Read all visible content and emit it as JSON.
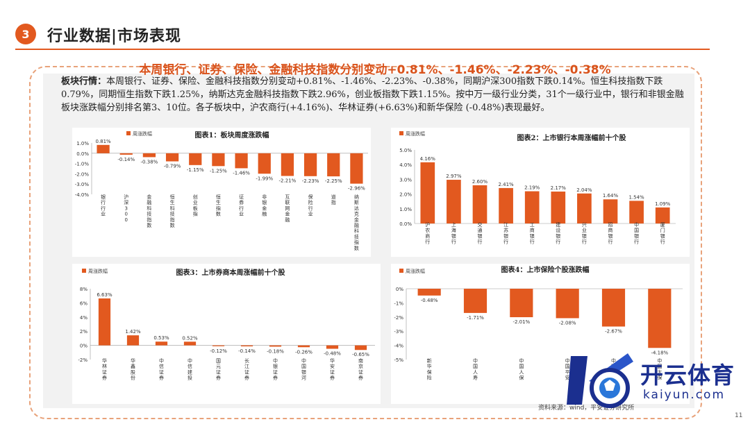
{
  "header": {
    "number": "3",
    "title": "行业数据|市场表现"
  },
  "headline": "本周银行、证券、保险、金融科技指数分别变动+0.81%、-1.46%、-2.23%、-0.38%",
  "summary": {
    "label": "板块行情：",
    "text": "本周银行、证券、保险、金融科技指数分别变动+0.81%、-1.46%、-2.23%、-0.38%，同期沪深300指数下跌0.14%。恒生科技指数下跌0.79%，同期恒生指数下跌1.25%，纳斯达克金融科技指数下跌2.96%，创业板指数下跌1.15%。按中万一级行业分类，31个一级行业中，银行和非银金融板块涨跌幅分别排名第3、10位。各子板块中，沪农商行(+4.16%)、华林证券(+6.63%)和新华保险 (-0.48%)表现最好。"
  },
  "source": "资料来源：wind，平安证券研究所",
  "page_number": "11",
  "watermark": {
    "cn": "开云体育",
    "en": "kaiyun.com"
  },
  "colors": {
    "accent": "#e2591f",
    "bar": "#e2591f"
  },
  "chart_data": [
    {
      "type": "bar",
      "title": "图表1：板块周度涨跌幅",
      "legend": "周涨跌幅",
      "categories": [
        "银行行业",
        "沪深300",
        "金融科技指数",
        "恒生科技指数",
        "创业板指",
        "恒生指数",
        "证券行业",
        "非银金融",
        "互联网金融",
        "保险行业",
        "道指",
        "纳斯达克金融科技指数"
      ],
      "values": [
        0.81,
        -0.14,
        -0.38,
        -0.79,
        -1.15,
        -1.25,
        -1.46,
        -1.99,
        -2.21,
        -2.23,
        -2.25,
        -2.96
      ],
      "data_labels": [
        "0.81%",
        "-0.14%",
        "-0.38%",
        "-0.79%",
        "-1.15%",
        "-1.25%",
        "-1.46%",
        "-1.99%",
        "-2.21%",
        "-2.23%",
        "-2.25%",
        "-2.96%"
      ],
      "y_ticks": [
        1,
        0,
        -1,
        -2,
        -3,
        -4
      ],
      "y_tick_labels": [
        "1.0%",
        "0.0%",
        "-1.0%",
        "-2.0%",
        "-3.0%",
        "-4.0%"
      ],
      "ylim": [
        -4,
        1
      ]
    },
    {
      "type": "bar",
      "title": "图表2：上市银行本周涨幅前十个股",
      "legend": "周涨跌幅",
      "categories": [
        "沪农商行",
        "上海银行",
        "交通银行",
        "江苏银行",
        "工商银行",
        "建设银行",
        "兴业银行",
        "招商银行",
        "中国银行",
        "厦门银行"
      ],
      "values": [
        4.16,
        2.97,
        2.6,
        2.41,
        2.19,
        2.17,
        2.04,
        1.64,
        1.54,
        1.09
      ],
      "data_labels": [
        "4.16%",
        "2.97%",
        "2.60%",
        "2.41%",
        "2.19%",
        "2.17%",
        "2.04%",
        "1.64%",
        "1.54%",
        "1.09%"
      ],
      "y_ticks": [
        5,
        4,
        3,
        2,
        1,
        0
      ],
      "y_tick_labels": [
        "5.0%",
        "4.0%",
        "3.0%",
        "2.0%",
        "1.0%",
        "0.0%"
      ],
      "ylim": [
        0,
        5
      ]
    },
    {
      "type": "bar",
      "title": "图表3：上市券商本周涨幅前十个股",
      "legend": "周涨跌幅",
      "categories": [
        "华林证券",
        "华鑫股份",
        "中信证券",
        "中信建投",
        "国元证券",
        "长江证券",
        "中银证券",
        "中国银河",
        "华安证券",
        "南京证券"
      ],
      "values": [
        6.63,
        1.42,
        0.53,
        0.52,
        -0.12,
        -0.14,
        -0.18,
        -0.26,
        -0.48,
        -0.65
      ],
      "data_labels": [
        "6.63%",
        "1.42%",
        "0.53%",
        "0.52%",
        "-0.12%",
        "-0.14%",
        "-0.18%",
        "-0.26%",
        "-0.48%",
        "-0.65%"
      ],
      "y_ticks": [
        8,
        6,
        4,
        2,
        0,
        -2
      ],
      "y_tick_labels": [
        "8%",
        "6%",
        "4%",
        "2%",
        "0%",
        "-2%"
      ],
      "ylim": [
        -2,
        8
      ]
    },
    {
      "type": "bar",
      "title": "图表4：上市保险个股涨跌幅",
      "legend": "周涨跌幅",
      "categories": [
        "新华保险",
        "中国人寿",
        "中国人保",
        "中国平安",
        "中国太保",
        "中国太保"
      ],
      "values": [
        -0.48,
        -1.71,
        -2.01,
        -2.08,
        -2.67,
        -4.18
      ],
      "data_labels": [
        "-0.48%",
        "-1.71%",
        "-2.01%",
        "-2.08%",
        "-2.67%",
        "-4.18%"
      ],
      "y_ticks": [
        0,
        -1,
        -2,
        -3,
        -4,
        -5
      ],
      "y_tick_labels": [
        "0%",
        "-1%",
        "-2%",
        "-3%",
        "-4%",
        "-5%"
      ],
      "ylim": [
        -5,
        0
      ]
    }
  ]
}
